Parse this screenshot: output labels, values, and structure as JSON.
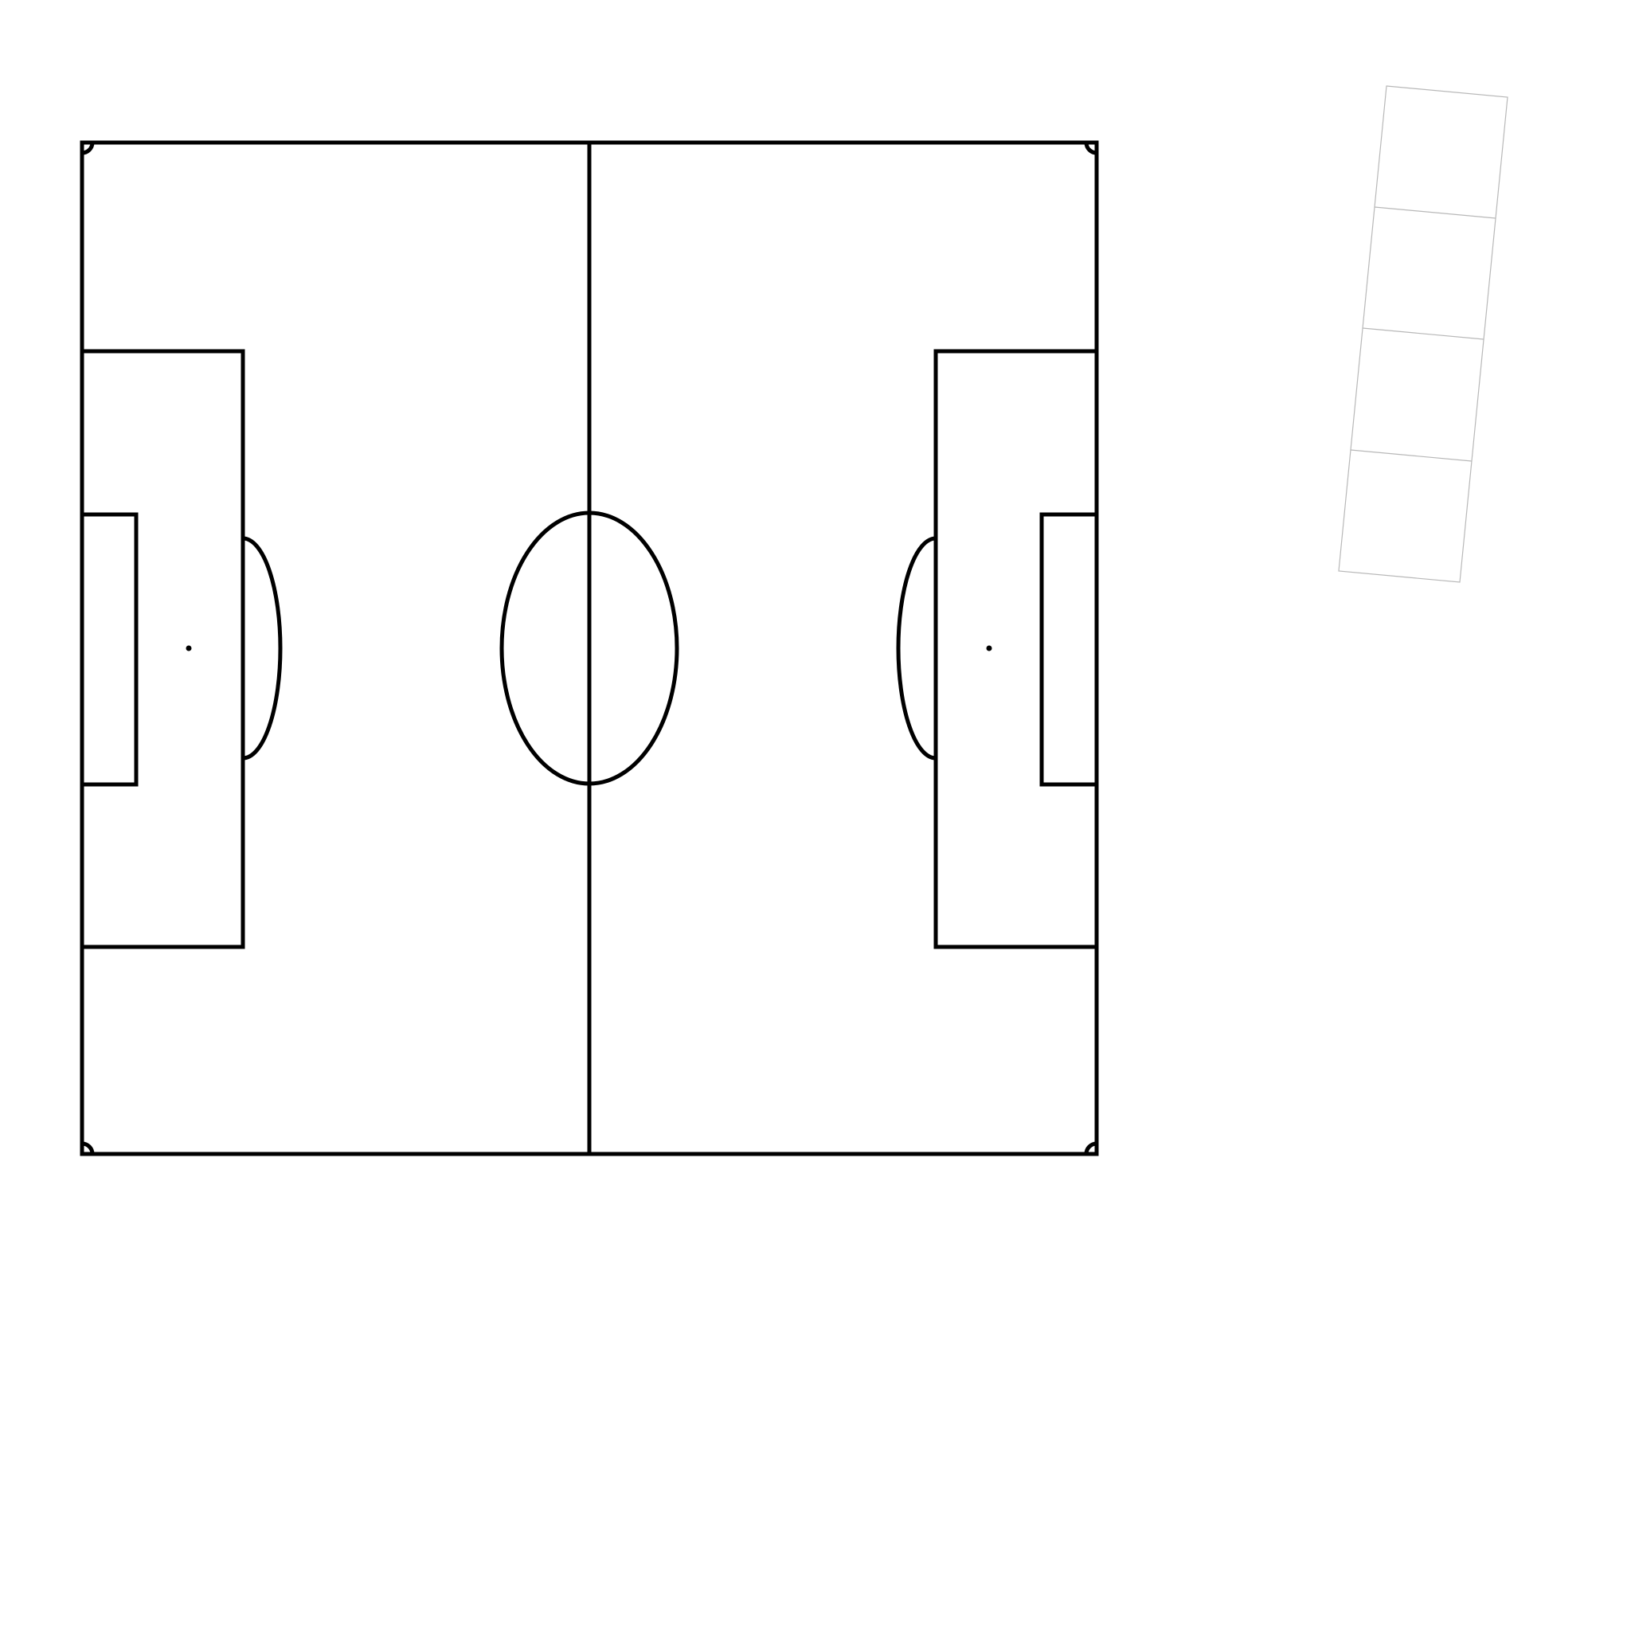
{
  "colors": {
    "background": "#ffffff",
    "pitch_lines": "#000000",
    "bench_outline": "#b8b8b8"
  },
  "pitch": {
    "corner_arcs": 4,
    "penalty_spots": 2
  },
  "bench_panel": {
    "slot_count": 4
  }
}
